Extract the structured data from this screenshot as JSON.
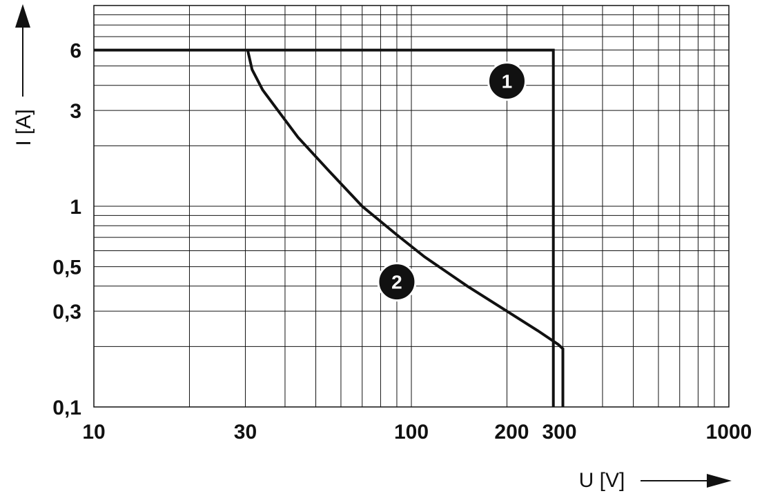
{
  "chart_data": {
    "type": "line",
    "xlabel": "U [V]",
    "ylabel": "I [A]",
    "x_scale": "log",
    "y_scale": "log",
    "xlim": [
      10,
      1000
    ],
    "ylim": [
      0.1,
      10
    ],
    "grid": true,
    "x_ticks": [
      {
        "value": 10,
        "label": "10"
      },
      {
        "value": 30,
        "label": "30"
      },
      {
        "value": 100,
        "label": "100"
      },
      {
        "value": 200,
        "label": "200"
      },
      {
        "value": 300,
        "label": "300"
      },
      {
        "value": 1000,
        "label": "1000"
      }
    ],
    "y_ticks": [
      {
        "value": 6,
        "label": "6"
      },
      {
        "value": 3,
        "label": "3"
      },
      {
        "value": 1,
        "label": "1"
      },
      {
        "value": 0.5,
        "label": "0,5"
      },
      {
        "value": 0.3,
        "label": "0,3"
      },
      {
        "value": 0.1,
        "label": "0,1"
      }
    ],
    "series": [
      {
        "marker": "1",
        "points": [
          [
            10,
            6
          ],
          [
            280,
            6
          ],
          [
            280,
            0.1
          ]
        ],
        "marker_at": [
          200,
          4.2
        ]
      },
      {
        "marker": "2",
        "points": [
          [
            30.5,
            6
          ],
          [
            31.5,
            4.8
          ],
          [
            34,
            3.8
          ],
          [
            38,
            3.0
          ],
          [
            44,
            2.2
          ],
          [
            55,
            1.5
          ],
          [
            70,
            1.0
          ],
          [
            90,
            0.72
          ],
          [
            110,
            0.56
          ],
          [
            150,
            0.4
          ],
          [
            200,
            0.3
          ],
          [
            250,
            0.24
          ],
          [
            290,
            0.205
          ],
          [
            300,
            0.195
          ],
          [
            300,
            0.1
          ]
        ],
        "marker_at": [
          90,
          0.42
        ]
      }
    ]
  }
}
